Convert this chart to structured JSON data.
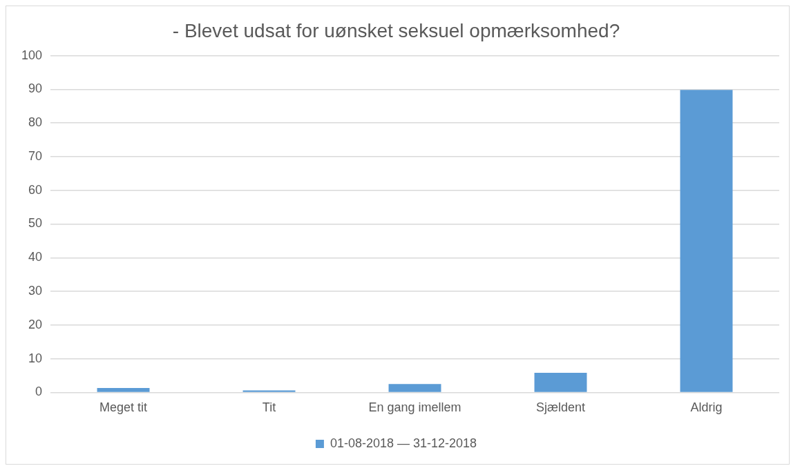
{
  "chart_data": {
    "type": "bar",
    "title": "- Blevet udsat for uønsket seksuel opmærksomhed?",
    "categories": [
      "Meget tit",
      "Tit",
      "En gang imellem",
      "Sjældent",
      "Aldrig"
    ],
    "series": [
      {
        "name": "01-08-2018 — 31-12-2018",
        "color": "#5b9bd5",
        "values": [
          1.3,
          0.6,
          2.5,
          5.8,
          89.8
        ]
      }
    ],
    "ylim": [
      0,
      100
    ],
    "yticks": [
      0,
      10,
      20,
      30,
      40,
      50,
      60,
      70,
      80,
      90,
      100
    ],
    "grid": "y",
    "legend": "bottom"
  }
}
